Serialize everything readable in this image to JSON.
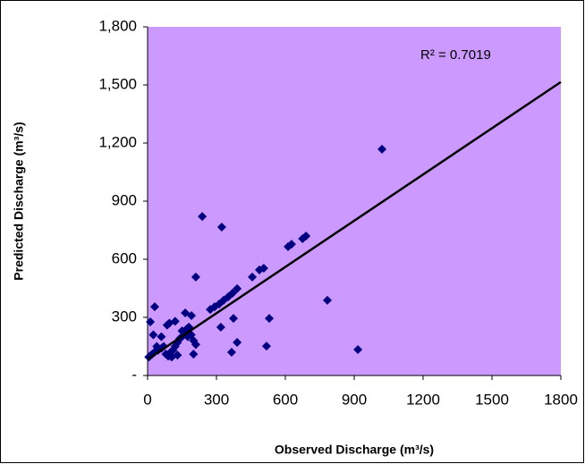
{
  "chart_data": {
    "type": "scatter",
    "xlabel": "Observed Discharge (m³/s)",
    "ylabel": "Predicted Discharge (m³/s)",
    "annotation": "R² = 0.7019",
    "xlim": [
      0,
      1800
    ],
    "ylim": [
      0,
      1800
    ],
    "xticks": [
      0,
      300,
      600,
      900,
      1200,
      1500,
      1800
    ],
    "yticks": [
      {
        "value": 0,
        "label": "-"
      },
      300,
      600,
      900,
      {
        "value": 1200,
        "label": "1,200"
      },
      {
        "value": 1500,
        "label": "1,500"
      },
      {
        "value": 1800,
        "label": "1,800"
      }
    ],
    "plot_color": "#cc99ff",
    "series": [
      {
        "color": "#000080",
        "x": [
          1021,
          238,
          323,
          210,
          690,
          675,
          627,
          612,
          506,
          487,
          456,
          783,
          390,
          370,
          351,
          331,
          312,
          292,
          273,
          31,
          12,
          530,
          374,
          319,
          518,
          390,
          366,
          916,
          164,
          191,
          5,
          10,
          20,
          30,
          45,
          60,
          70,
          80,
          90,
          100,
          110,
          120,
          130,
          140,
          150,
          160,
          170,
          180,
          190,
          200,
          210,
          85,
          95,
          120,
          150,
          175,
          200,
          60,
          40,
          105,
          25,
          130
        ],
        "values": [
          1168,
          821,
          766,
          508,
          720,
          706,
          678,
          665,
          554,
          545,
          508,
          388,
          448,
          425,
          406,
          388,
          369,
          355,
          341,
          355,
          277,
          295,
          295,
          249,
          152,
          171,
          120,
          134,
          323,
          309,
          95,
          100,
          110,
          120,
          130,
          140,
          150,
          110,
          100,
          120,
          130,
          150,
          170,
          190,
          200,
          220,
          240,
          250,
          210,
          180,
          160,
          260,
          270,
          280,
          230,
          200,
          110,
          200,
          150,
          95,
          210,
          105
        ]
      }
    ],
    "trendline": {
      "color": "#000000",
      "x": [
        0,
        1800
      ],
      "values": [
        83,
        1515
      ]
    }
  }
}
